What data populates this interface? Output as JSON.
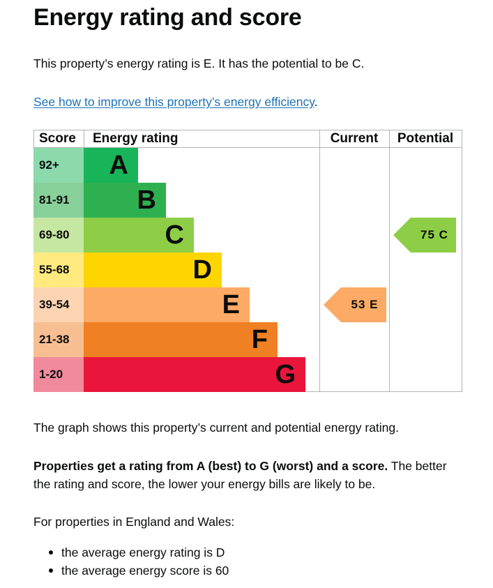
{
  "page": {
    "title": "Energy rating and score",
    "intro": "This property’s energy rating is E. It has the potential to be C.",
    "improve_link": "See how to improve this property’s energy efficiency",
    "improve_suffix": ".",
    "graph_note": "The graph shows this property’s current and potential energy rating.",
    "props_bold": "Properties get a rating from A (best) to G (worst) and a score.",
    "props_rest": " The better the rating and score, the lower your energy bills are likely to be.",
    "england_intro": "For properties in England and Wales:",
    "bullets": [
      "the average energy rating is D",
      "the average energy score is 60"
    ]
  },
  "chart_data": {
    "type": "table",
    "headers": {
      "score": "Score",
      "rating": "Energy rating",
      "current": "Current",
      "potential": "Potential"
    },
    "bands": [
      {
        "score": "92+",
        "letter": "A",
        "color": "#19b459",
        "score_bg": "#8cd9ac"
      },
      {
        "score": "81-91",
        "letter": "B",
        "color": "#2eb051",
        "score_bg": "#88d09a"
      },
      {
        "score": "69-80",
        "letter": "C",
        "color": "#8dce46",
        "score_bg": "#c6e7a2"
      },
      {
        "score": "55-68",
        "letter": "D",
        "color": "#ffd500",
        "score_bg": "#ffea80"
      },
      {
        "score": "39-54",
        "letter": "E",
        "color": "#fcaa65",
        "score_bg": "#fdd4b2"
      },
      {
        "score": "21-38",
        "letter": "F",
        "color": "#ef8023",
        "score_bg": "#f7bf91"
      },
      {
        "score": "1-20",
        "letter": "G",
        "color": "#e9153b",
        "score_bg": "#f08a9d"
      }
    ],
    "current": {
      "label": "53 E",
      "score": 53,
      "band": "E",
      "color": "#fcaa65"
    },
    "potential": {
      "label": "75 C",
      "score": 75,
      "band": "C",
      "color": "#8dce46"
    }
  }
}
